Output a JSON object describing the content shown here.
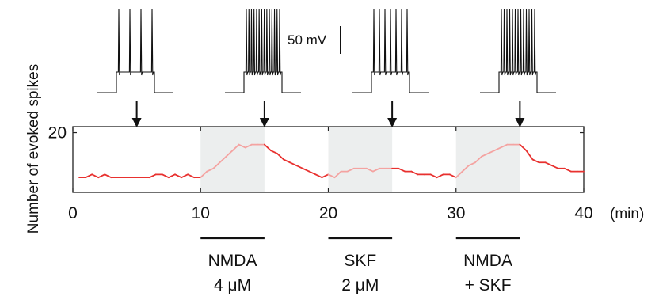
{
  "chart_data": {
    "type": "line",
    "title": "",
    "xlabel": "(min)",
    "ylabel": "Number of evoked spikes",
    "xlim": [
      0,
      40
    ],
    "ylim": [
      0,
      22
    ],
    "x_ticks": [
      "0",
      "10",
      "20",
      "30",
      "40"
    ],
    "y_ticks": [
      "20"
    ],
    "grid": false,
    "series": [
      {
        "color": "#e8312f",
        "shaded_color": "#f4a3a1",
        "points": [
          [
            0.5,
            5
          ],
          [
            1,
            5
          ],
          [
            1.5,
            6
          ],
          [
            2,
            5
          ],
          [
            2.5,
            6
          ],
          [
            3,
            5
          ],
          [
            3.5,
            5
          ],
          [
            4,
            5
          ],
          [
            4.5,
            5
          ],
          [
            5,
            5
          ],
          [
            5.5,
            5
          ],
          [
            6,
            5
          ],
          [
            6.5,
            6
          ],
          [
            7,
            6
          ],
          [
            7.5,
            5
          ],
          [
            8,
            6
          ],
          [
            8.5,
            5
          ],
          [
            9,
            6
          ],
          [
            9.5,
            5
          ],
          [
            10,
            5
          ],
          [
            10.5,
            7
          ],
          [
            11,
            8
          ],
          [
            11.5,
            10
          ],
          [
            12,
            12
          ],
          [
            12.5,
            14
          ],
          [
            13,
            16
          ],
          [
            13.5,
            15
          ],
          [
            14,
            16
          ],
          [
            14.5,
            16
          ],
          [
            15,
            16
          ],
          [
            15.5,
            14
          ],
          [
            16,
            13
          ],
          [
            16.5,
            11
          ],
          [
            17,
            10
          ],
          [
            17.5,
            9
          ],
          [
            18,
            8
          ],
          [
            18.5,
            7
          ],
          [
            19,
            6
          ],
          [
            19.5,
            5
          ],
          [
            20,
            6
          ],
          [
            20.5,
            5
          ],
          [
            21,
            7
          ],
          [
            21.5,
            7
          ],
          [
            22,
            8
          ],
          [
            22.5,
            8
          ],
          [
            23,
            8
          ],
          [
            23.5,
            7
          ],
          [
            24,
            8
          ],
          [
            24.5,
            8
          ],
          [
            25,
            8
          ],
          [
            25.5,
            8
          ],
          [
            26,
            7
          ],
          [
            26.5,
            7
          ],
          [
            27,
            6
          ],
          [
            27.5,
            6
          ],
          [
            28,
            6
          ],
          [
            28.5,
            5
          ],
          [
            29,
            6
          ],
          [
            29.5,
            6
          ],
          [
            30,
            5
          ],
          [
            30.5,
            7
          ],
          [
            31,
            9
          ],
          [
            31.5,
            10
          ],
          [
            32,
            12
          ],
          [
            32.5,
            13
          ],
          [
            33,
            14
          ],
          [
            33.5,
            15
          ],
          [
            34,
            16
          ],
          [
            34.5,
            16
          ],
          [
            35,
            16
          ],
          [
            35.5,
            14
          ],
          [
            36,
            11
          ],
          [
            36.5,
            10
          ],
          [
            37,
            10
          ],
          [
            37.5,
            9
          ],
          [
            38,
            8
          ],
          [
            38.5,
            8
          ],
          [
            39,
            7
          ],
          [
            39.5,
            7
          ],
          [
            40,
            7
          ]
        ]
      }
    ],
    "shaded_intervals": [
      [
        10,
        15
      ],
      [
        20,
        25
      ],
      [
        30,
        35
      ]
    ],
    "shade_color": "#eceeee",
    "arrow_times": [
      5,
      15,
      25,
      35
    ],
    "treatment_bars": [
      {
        "start": 10,
        "end": 15,
        "label_line1": "NMDA",
        "label_line2": "4 μM"
      },
      {
        "start": 20,
        "end": 25,
        "label_line1": "SKF",
        "label_line2": "2 μM"
      },
      {
        "start": 30,
        "end": 35,
        "label_line1": "NMDA",
        "label_line2": "+ SKF"
      }
    ],
    "trace_insets": [
      {
        "spike_count": 4
      },
      {
        "spike_count": 14
      },
      {
        "spike_count": 7
      },
      {
        "spike_count": 13
      }
    ],
    "scale_bar_label": "50 mV"
  }
}
